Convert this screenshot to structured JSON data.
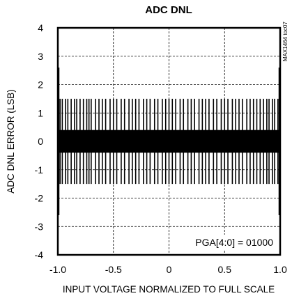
{
  "chart_data": {
    "type": "bar",
    "title": "ADC DNL",
    "xlabel": "INPUT VOLTAGE NORMALIZED TO FULL SCALE",
    "ylabel": "ADC DNL ERROR (LSB)",
    "xlim": [
      -1.0,
      1.0
    ],
    "ylim": [
      -4,
      4
    ],
    "x_ticks": [
      "-1.0",
      "-0.5",
      "0",
      "0.5",
      "1.0"
    ],
    "x_tick_values": [
      -1.0,
      -0.5,
      0,
      0.5,
      1.0
    ],
    "y_ticks": [
      "4",
      "3",
      "2",
      "1",
      "0",
      "-1",
      "-2",
      "-3",
      "-4"
    ],
    "y_tick_values": [
      4,
      3,
      2,
      1,
      0,
      -1,
      -2,
      -3,
      -4
    ],
    "grid": true,
    "grid_style": "dashed",
    "series": [
      {
        "color": "#000000",
        "dense_band": [
          -0.4,
          0.4
        ],
        "envelope": [
          -1.5,
          1.5
        ],
        "edge_spike": [
          -2.6,
          2.6
        ],
        "spike_x": [
          -0.98,
          -0.96,
          -0.93,
          -0.91,
          -0.88,
          -0.85,
          -0.83,
          -0.8,
          -0.77,
          -0.74,
          -0.72,
          -0.7,
          -0.66,
          -0.63,
          -0.6,
          -0.57,
          -0.53,
          -0.5,
          -0.47,
          -0.43,
          -0.4,
          -0.36,
          -0.33,
          -0.3,
          -0.27,
          -0.23,
          -0.2,
          -0.17,
          -0.13,
          -0.1,
          -0.06,
          -0.03,
          0.0,
          0.03,
          0.06,
          0.1,
          0.13,
          0.17,
          0.2,
          0.23,
          0.27,
          0.3,
          0.33,
          0.36,
          0.4,
          0.43,
          0.47,
          0.5,
          0.53,
          0.57,
          0.6,
          0.63,
          0.66,
          0.7,
          0.73,
          0.76,
          0.79,
          0.82,
          0.85,
          0.88,
          0.9,
          0.93,
          0.95,
          0.98
        ]
      }
    ],
    "annotation": "PGA[4:0] = 01000",
    "side_label": "MAX1464 toc07"
  }
}
